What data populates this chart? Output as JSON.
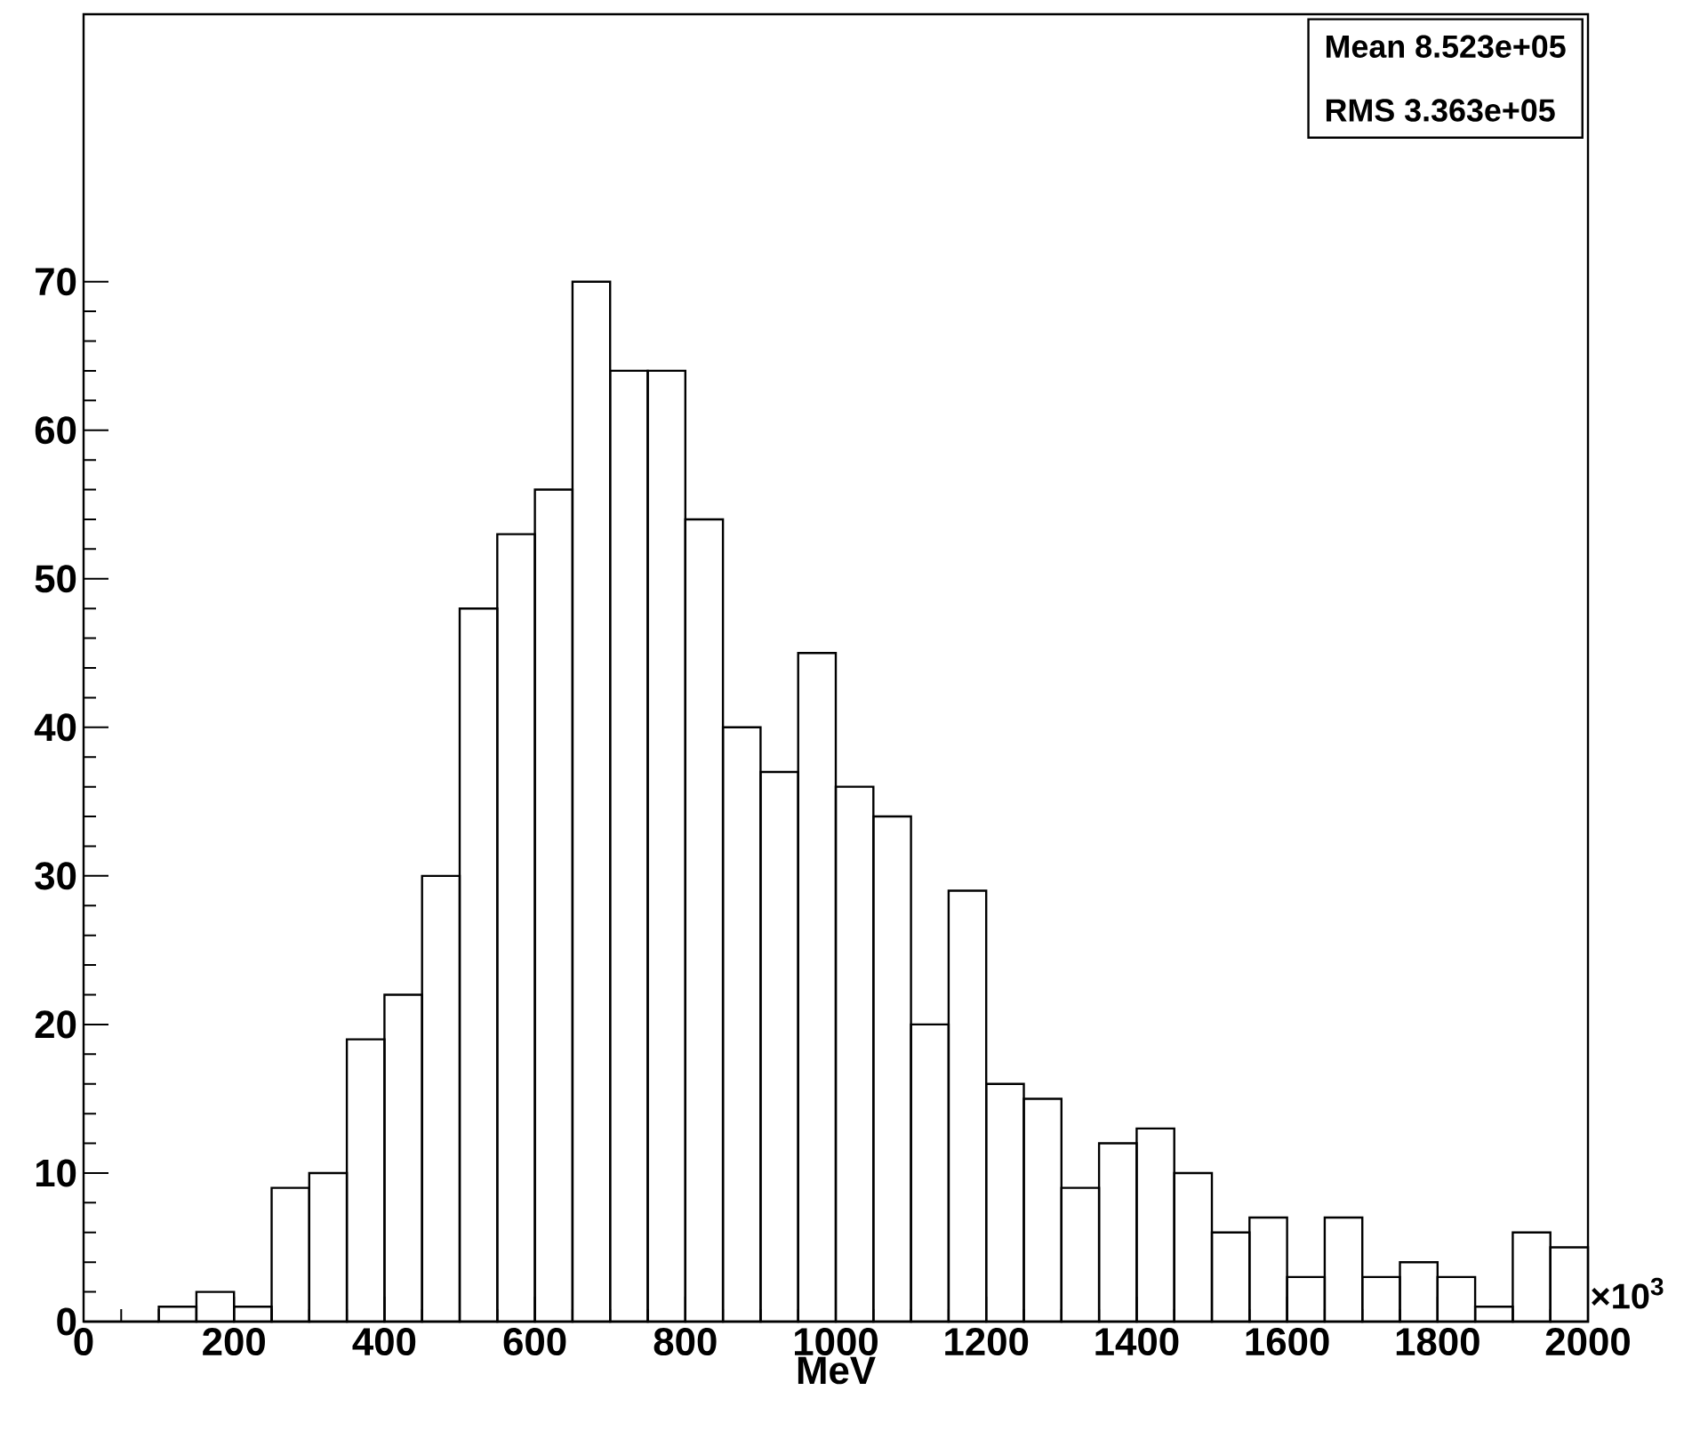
{
  "chart_data": {
    "type": "histogram",
    "xlabel": "MeV",
    "color": "#000000",
    "bins": [
      0,
      50,
      100,
      150,
      200,
      250,
      300,
      350,
      400,
      450,
      500,
      550,
      600,
      650,
      700,
      750,
      800,
      850,
      900,
      950,
      1000,
      1050,
      1100,
      1150,
      1200,
      1250,
      1300,
      1350,
      1400,
      1450,
      1500,
      1550,
      1600,
      1650,
      1700,
      1750,
      1800,
      1850,
      1900,
      1950,
      2000
    ],
    "values": [
      0,
      0,
      1,
      2,
      1,
      9,
      10,
      19,
      22,
      30,
      48,
      53,
      56,
      70,
      64,
      64,
      54,
      40,
      37,
      45,
      36,
      34,
      20,
      29,
      16,
      15,
      9,
      12,
      13,
      10,
      6,
      7,
      3,
      7,
      3,
      4,
      3,
      1,
      6,
      5
    ],
    "xlim": [
      0,
      2000
    ],
    "ylim": [
      0,
      88
    ],
    "xticks": [
      0,
      200,
      400,
      600,
      800,
      1000,
      1200,
      1400,
      1600,
      1800,
      2000
    ],
    "yticks": [
      0,
      10,
      20,
      30,
      40,
      50,
      60,
      70
    ],
    "annotations": [
      "Mean  8.523e+05",
      "RMS  3.363e+05",
      "×10$^{3}$"
    ]
  }
}
